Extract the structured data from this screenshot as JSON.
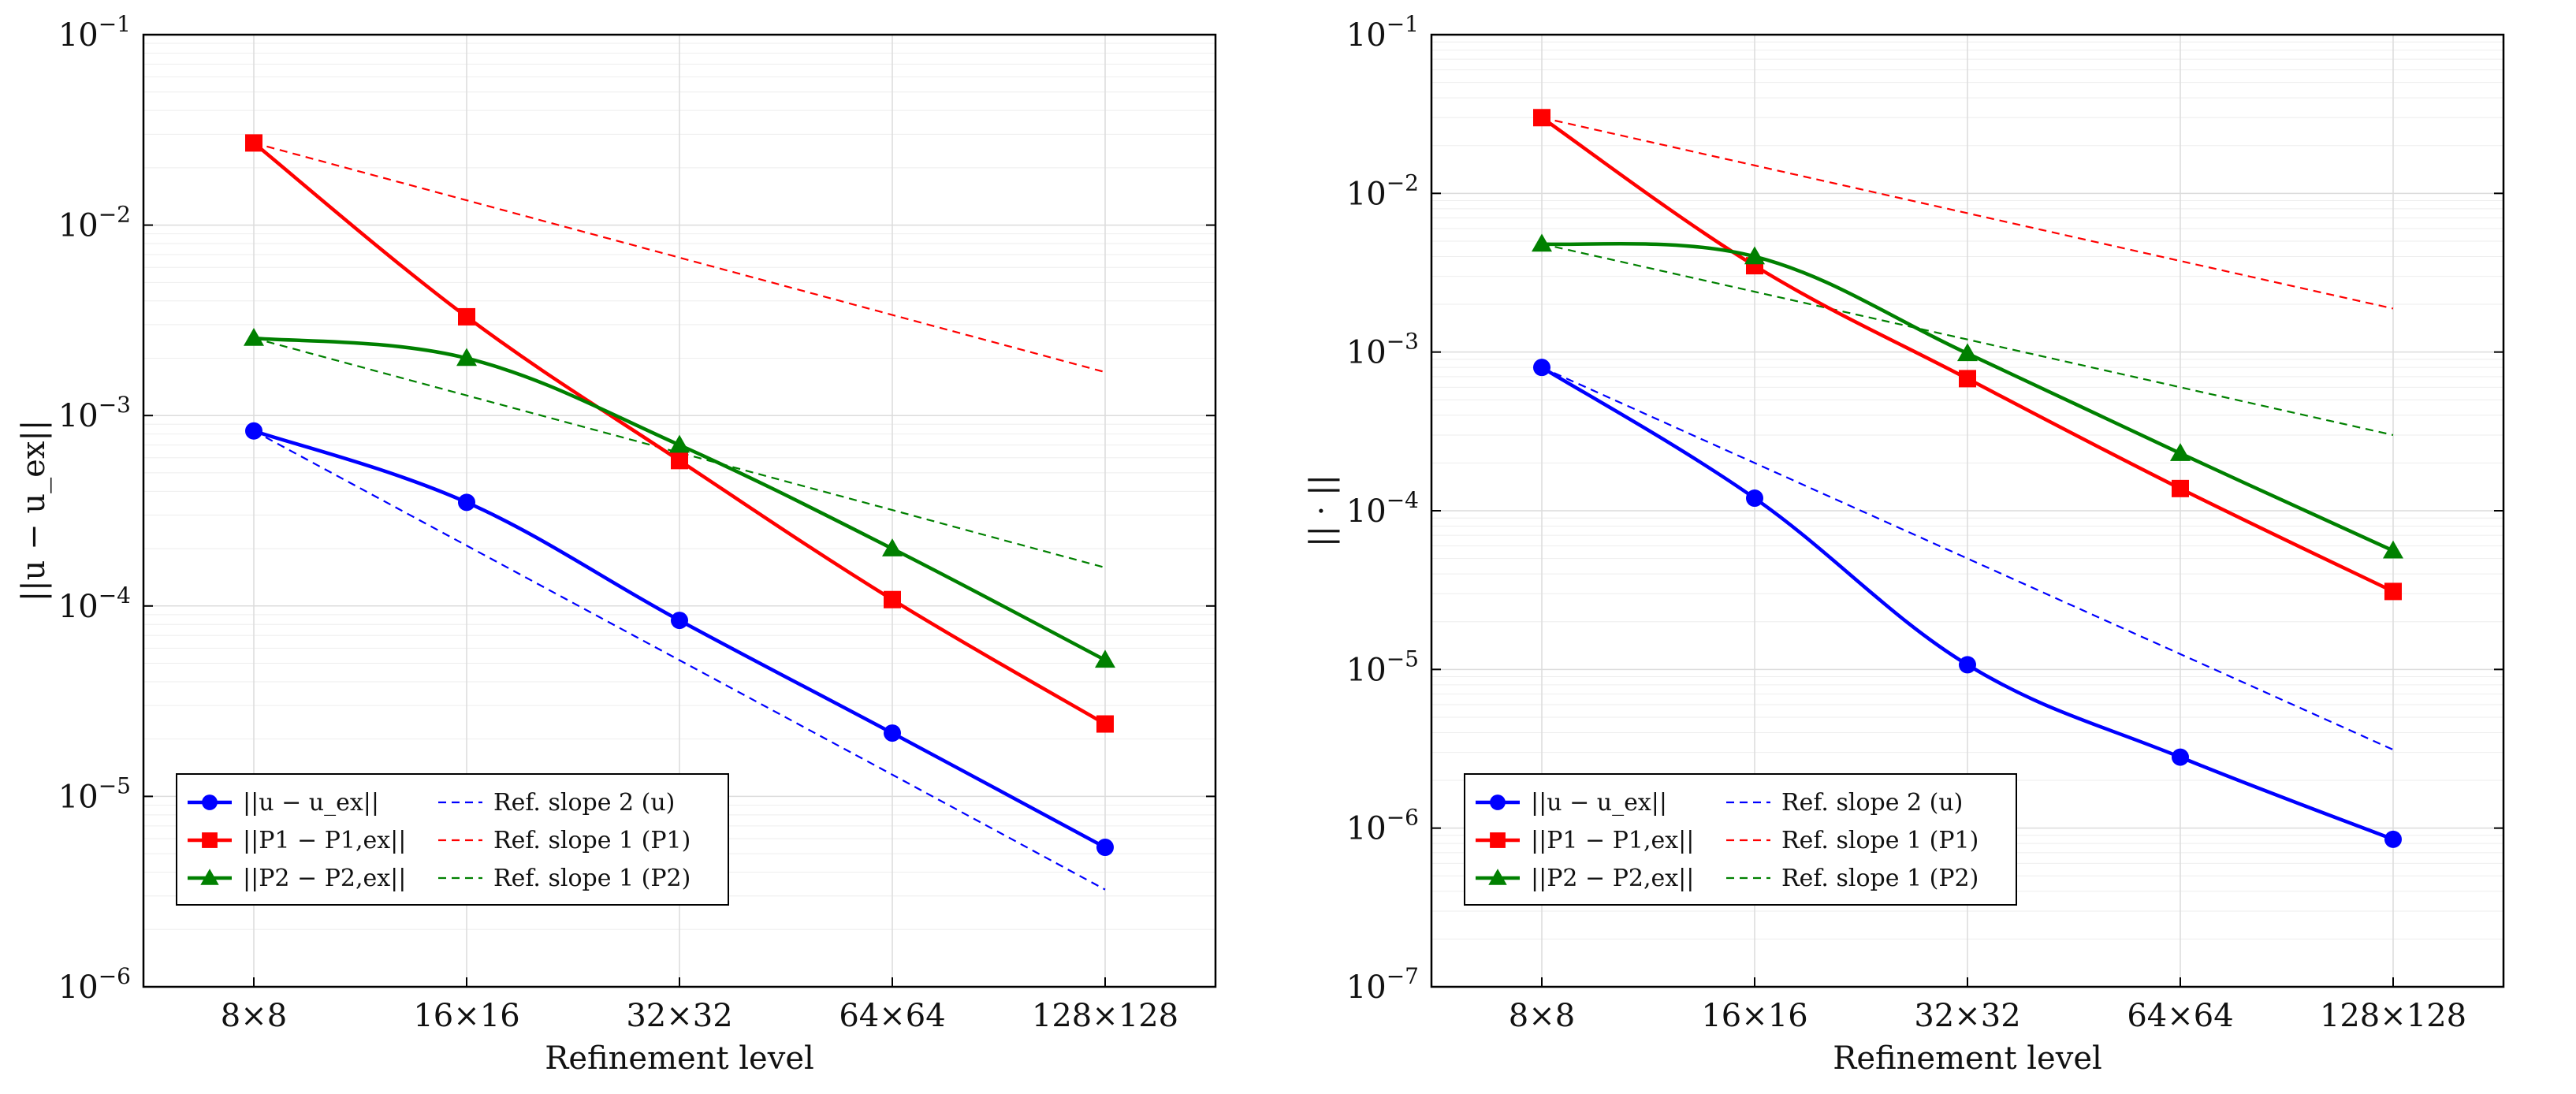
{
  "chart_data": [
    {
      "type": "line",
      "xlabel": "Refinement level",
      "ylabel": "||u − u_ex||",
      "yscale": "log",
      "ylim": [
        1e-06,
        0.1
      ],
      "ytick_labels": [
        "10−6",
        "10−5",
        "10−4",
        "10−3",
        "10−2",
        "10−1"
      ],
      "categories": [
        "8×8",
        "16×16",
        "32×32",
        "64×64",
        "128×128"
      ],
      "grid": true,
      "legend_position": "bottom-left",
      "series": [
        {
          "name": "||u − u_ex||",
          "color": "#0000ff",
          "style": "solid",
          "marker": "circle",
          "values": [
            0.00083,
            0.00035,
            8.4e-05,
            2.15e-05,
            5.4e-06
          ]
        },
        {
          "name": "||P1 − P1,ex||",
          "color": "#ff0000",
          "style": "solid",
          "marker": "square",
          "values": [
            0.027,
            0.0033,
            0.00058,
            0.000108,
            2.4e-05
          ]
        },
        {
          "name": "||P2 − P2,ex||",
          "color": "#008000",
          "style": "solid",
          "marker": "triangle",
          "values": [
            0.00255,
            0.002,
            0.0007,
            0.0002,
            5.2e-05
          ]
        },
        {
          "name": "Ref. slope 2 (u)",
          "color": "#0000ff",
          "style": "dashed",
          "marker": "none",
          "values": [
            0.00083,
            0.0002075,
            5.19e-05,
            1.3e-05,
            3.24e-06
          ]
        },
        {
          "name": "Ref. slope 1 (P1)",
          "color": "#ff0000",
          "style": "dashed",
          "marker": "none",
          "values": [
            0.027,
            0.0135,
            0.00675,
            0.003375,
            0.00169
          ]
        },
        {
          "name": "Ref. slope 1 (P2)",
          "color": "#008000",
          "style": "dashed",
          "marker": "none",
          "values": [
            0.00255,
            0.001275,
            0.000638,
            0.000319,
            0.000159
          ]
        }
      ],
      "legend": [
        {
          "label": "||u − u_ex||",
          "series": 0
        },
        {
          "label": "Ref. slope 2 (u)",
          "series": 3
        },
        {
          "label": "||P1 − P1,ex||",
          "series": 1
        },
        {
          "label": "Ref. slope 1 (P1)",
          "series": 4
        },
        {
          "label": "||P2 − P2,ex||",
          "series": 2
        },
        {
          "label": "Ref. slope 1 (P2)",
          "series": 5
        }
      ]
    },
    {
      "type": "line",
      "xlabel": "Refinement level",
      "ylabel": "|| · ||",
      "yscale": "log",
      "ylim": [
        1e-07,
        0.1
      ],
      "ytick_labels": [
        "10−7",
        "10−6",
        "10−5",
        "10−4",
        "10−3",
        "10−2",
        "10−1"
      ],
      "categories": [
        "8×8",
        "16×16",
        "32×32",
        "64×64",
        "128×128"
      ],
      "grid": true,
      "legend_position": "bottom-left",
      "series": [
        {
          "name": "||u − u_ex||",
          "color": "#0000ff",
          "style": "solid",
          "marker": "circle",
          "values": [
            0.0008,
            0.00012,
            1.07e-05,
            2.8e-06,
            8.5e-07
          ]
        },
        {
          "name": "||P1 − P1,ex||",
          "color": "#ff0000",
          "style": "solid",
          "marker": "square",
          "values": [
            0.03,
            0.0035,
            0.00068,
            0.000138,
            3.1e-05
          ]
        },
        {
          "name": "||P2 − P2,ex||",
          "color": "#008000",
          "style": "solid",
          "marker": "triangle",
          "values": [
            0.0048,
            0.004,
            0.00098,
            0.00023,
            5.6e-05
          ]
        },
        {
          "name": "Ref. slope 2 (u)",
          "color": "#0000ff",
          "style": "dashed",
          "marker": "none",
          "values": [
            0.0008,
            0.0002,
            5e-05,
            1.25e-05,
            3.12e-06
          ]
        },
        {
          "name": "Ref. slope 1 (P1)",
          "color": "#ff0000",
          "style": "dashed",
          "marker": "none",
          "values": [
            0.03,
            0.015,
            0.0075,
            0.00375,
            0.00188
          ]
        },
        {
          "name": "Ref. slope 1 (P2)",
          "color": "#008000",
          "style": "dashed",
          "marker": "none",
          "values": [
            0.0048,
            0.0024,
            0.0012,
            0.0006,
            0.0003
          ]
        }
      ],
      "legend": [
        {
          "label": "||u − u_ex||",
          "series": 0
        },
        {
          "label": "Ref. slope 2 (u)",
          "series": 3
        },
        {
          "label": "||P1 − P1,ex||",
          "series": 1
        },
        {
          "label": "Ref. slope 1 (P1)",
          "series": 4
        },
        {
          "label": "||P2 − P2,ex||",
          "series": 2
        },
        {
          "label": "Ref. slope 1 (P2)",
          "series": 5
        }
      ]
    }
  ]
}
